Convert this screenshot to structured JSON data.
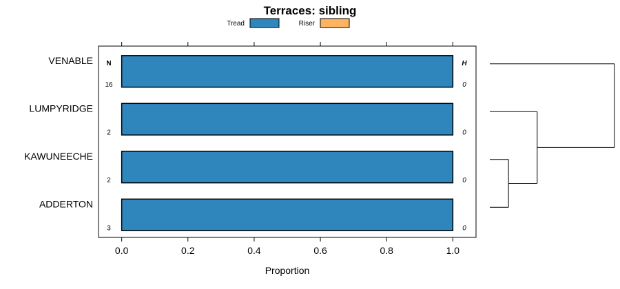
{
  "chart_data": {
    "type": "bar",
    "orientation": "horizontal",
    "stacked": true,
    "title": "Terraces: sibling",
    "xlabel": "Proportion",
    "ylabel": "",
    "xlim": [
      -0.07,
      1.07
    ],
    "x_ticks": [
      "0.0",
      "0.2",
      "0.4",
      "0.6",
      "0.8",
      "1.0"
    ],
    "x_tick_values": [
      0,
      0.2,
      0.4,
      0.6,
      0.8,
      1.0
    ],
    "grid": false,
    "legend_position": "top",
    "categories": [
      "VENABLE",
      "LUMPYRIDGE",
      "KAWUNEECHE",
      "ADDERTON"
    ],
    "series": [
      {
        "name": "Tread",
        "color": "#2e86bd",
        "values": [
          1.0,
          1.0,
          1.0,
          1.0
        ]
      },
      {
        "name": "Riser",
        "color": "#fdb462",
        "values": [
          0.0,
          0.0,
          0.0,
          0.0
        ]
      }
    ],
    "n_header": "N",
    "h_header": "H",
    "n_values": [
      "16",
      "2",
      "2",
      "3"
    ],
    "h_values": [
      "0",
      "0",
      "0",
      "0"
    ],
    "dendrogram": {
      "merges": [
        {
          "left": "KAWUNEECHE",
          "right": "ADDERTON",
          "height": 0.15
        },
        {
          "left": "LUMPYRIDGE",
          "right": "cluster-1",
          "height": 0.38
        },
        {
          "left": "VENABLE",
          "right": "cluster-2",
          "height": 1.0
        }
      ]
    }
  }
}
